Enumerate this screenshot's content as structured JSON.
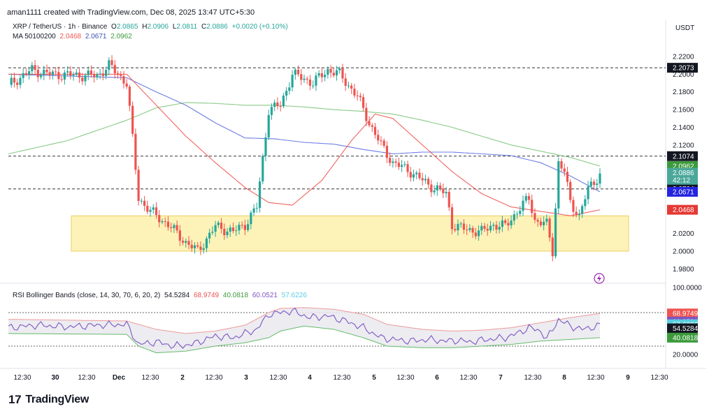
{
  "header": {
    "text": "aman1111 created with TradingView.com, Dec 08, 2025 13:47 UTC+5:30"
  },
  "legend": {
    "symbol": "XRP / TetherUS · 1h · Binance",
    "o_label": "O",
    "o": "2.0865",
    "h_label": "H",
    "h": "2.0906",
    "l_label": "L",
    "l": "2.0811",
    "c_label": "C",
    "c": "2.0886",
    "chg": "+0.0020 (+0.10%)",
    "ma_label": "MA 50100200",
    "ma50": "2.0468",
    "ma100": "2.0671",
    "ma200": "2.0962"
  },
  "rsi_legend": {
    "label": "RSI Bollinger Bands (close, 14, 30, 70, 6, 20, 2)",
    "v1": "54.5284",
    "v2": "68.9749",
    "v3": "40.0818",
    "v4": "60.0521",
    "v5": "57.6226"
  },
  "footer": {
    "brand": "TradingView",
    "logo": "17"
  },
  "colors": {
    "up": "#26a69a",
    "down": "#ef5350",
    "ma50": "#ef5350",
    "ma100": "#5b6ee1",
    "ma200": "#7cc47a",
    "rsi": "#7e57c2",
    "zone": "#fdf3b8",
    "zone_border": "#e6c34a"
  },
  "chart_data": [
    {
      "type": "candlestick",
      "title": "XRP / TetherUS · 1h · Binance",
      "currency": "USDT",
      "ylim": [
        1.97,
        2.235
      ],
      "y_ticks": [
        "2.2200",
        "2.2000",
        "2.1800",
        "2.1600",
        "2.1400",
        "2.1200",
        "2.0200",
        "2.0000",
        "1.9800"
      ],
      "x_ticks": [
        "12:30",
        "30",
        "12:30",
        "Dec",
        "12:30",
        "2",
        "12:30",
        "3",
        "12:30",
        "4",
        "12:30",
        "5",
        "12:30",
        "6",
        "12:30",
        "7",
        "12:30",
        "8",
        "12:30",
        "9",
        "12:30"
      ],
      "n_candles": 168,
      "closes_anchor": [
        [
          0,
          2.188
        ],
        [
          8,
          2.205
        ],
        [
          14,
          2.2
        ],
        [
          30,
          2.198
        ],
        [
          34,
          2.21
        ],
        [
          40,
          2.19
        ],
        [
          41,
          2.16
        ],
        [
          44,
          2.06
        ],
        [
          48,
          2.045
        ],
        [
          54,
          2.03
        ],
        [
          60,
          2.01
        ],
        [
          64,
          2.0
        ],
        [
          70,
          2.028
        ],
        [
          76,
          2.022
        ],
        [
          80,
          2.03
        ],
        [
          84,
          2.05
        ],
        [
          88,
          2.16
        ],
        [
          92,
          2.165
        ],
        [
          96,
          2.2
        ],
        [
          100,
          2.195
        ],
        [
          103,
          2.19
        ],
        [
          108,
          2.205
        ],
        [
          112,
          2.2
        ],
        [
          118,
          2.175
        ],
        [
          122,
          2.145
        ],
        [
          126,
          2.12
        ],
        [
          130,
          2.1
        ],
        [
          136,
          2.09
        ],
        [
          142,
          2.075
        ],
        [
          148,
          2.065
        ],
        [
          150,
          2.03
        ],
        [
          154,
          2.025
        ],
        [
          160,
          2.022
        ],
        [
          164,
          2.03
        ],
        [
          168,
          2.028
        ],
        [
          172,
          2.045
        ],
        [
          176,
          2.06
        ],
        [
          178,
          2.035
        ],
        [
          182,
          2.03
        ],
        [
          184,
          2.0
        ],
        [
          186,
          2.1
        ],
        [
          188,
          2.09
        ],
        [
          190,
          2.055
        ],
        [
          193,
          2.04
        ],
        [
          196,
          2.07
        ],
        [
          200,
          2.087
        ]
      ],
      "ma50_anchor": [
        [
          0,
          2.2
        ],
        [
          40,
          2.2
        ],
        [
          50,
          2.165
        ],
        [
          60,
          2.13
        ],
        [
          70,
          2.1
        ],
        [
          80,
          2.072
        ],
        [
          88,
          2.055
        ],
        [
          96,
          2.052
        ],
        [
          106,
          2.08
        ],
        [
          116,
          2.125
        ],
        [
          124,
          2.155
        ],
        [
          130,
          2.15
        ],
        [
          140,
          2.12
        ],
        [
          150,
          2.09
        ],
        [
          160,
          2.065
        ],
        [
          170,
          2.05
        ],
        [
          180,
          2.045
        ],
        [
          190,
          2.04
        ],
        [
          200,
          2.0468
        ]
      ],
      "ma100_anchor": [
        [
          0,
          2.2
        ],
        [
          40,
          2.196
        ],
        [
          50,
          2.18
        ],
        [
          60,
          2.165
        ],
        [
          70,
          2.145
        ],
        [
          80,
          2.128
        ],
        [
          90,
          2.127
        ],
        [
          100,
          2.123
        ],
        [
          110,
          2.121
        ],
        [
          120,
          2.115
        ],
        [
          130,
          2.11
        ],
        [
          140,
          2.112
        ],
        [
          150,
          2.112
        ],
        [
          160,
          2.11
        ],
        [
          170,
          2.108
        ],
        [
          180,
          2.1
        ],
        [
          190,
          2.085
        ],
        [
          200,
          2.0671
        ]
      ],
      "ma200_anchor": [
        [
          0,
          2.11
        ],
        [
          20,
          2.125
        ],
        [
          40,
          2.148
        ],
        [
          50,
          2.162
        ],
        [
          60,
          2.168
        ],
        [
          70,
          2.167
        ],
        [
          80,
          2.165
        ],
        [
          90,
          2.165
        ],
        [
          100,
          2.163
        ],
        [
          110,
          2.16
        ],
        [
          120,
          2.158
        ],
        [
          130,
          2.155
        ],
        [
          140,
          2.148
        ],
        [
          150,
          2.14
        ],
        [
          160,
          2.13
        ],
        [
          170,
          2.12
        ],
        [
          180,
          2.113
        ],
        [
          190,
          2.106
        ],
        [
          200,
          2.0962
        ]
      ],
      "horizontal_lines": [
        {
          "value": 2.2073,
          "label": "2.2073",
          "style": "dashed"
        },
        {
          "value": 2.1074,
          "label": "2.1074",
          "style": "dashed"
        },
        {
          "value": 2.0704,
          "label": "2.0704",
          "style": "dashed"
        }
      ],
      "price_labels": [
        {
          "value": 2.0962,
          "label": "2.0962",
          "color": "#3c9a3c"
        },
        {
          "value": 2.0886,
          "label": "2.0886",
          "sub": "42:12",
          "color": "#4aa89a"
        },
        {
          "value": 2.0671,
          "label": "2.0671",
          "color": "#2424e0"
        },
        {
          "value": 2.0468,
          "label": "2.0468",
          "color": "#e53935"
        }
      ],
      "zone": {
        "from": 2.0,
        "to": 2.04
      }
    },
    {
      "type": "line",
      "title": "RSI Bollinger Bands (close, 14, 30, 70, 6, 20, 2)",
      "ylim": [
        10,
        100
      ],
      "y_ticks": [
        "100.0000",
        "20.0000"
      ],
      "levels": [
        70,
        30
      ],
      "rsi_anchor": [
        [
          0,
          52
        ],
        [
          10,
          55
        ],
        [
          20,
          53
        ],
        [
          30,
          55
        ],
        [
          40,
          56
        ],
        [
          44,
          32
        ],
        [
          50,
          35
        ],
        [
          56,
          30
        ],
        [
          62,
          32
        ],
        [
          70,
          42
        ],
        [
          76,
          40
        ],
        [
          84,
          50
        ],
        [
          88,
          68
        ],
        [
          92,
          70
        ],
        [
          96,
          72
        ],
        [
          102,
          64
        ],
        [
          108,
          66
        ],
        [
          114,
          60
        ],
        [
          120,
          52
        ],
        [
          126,
          40
        ],
        [
          130,
          38
        ],
        [
          136,
          36
        ],
        [
          142,
          38
        ],
        [
          148,
          36
        ],
        [
          152,
          37
        ],
        [
          156,
          35
        ],
        [
          162,
          38
        ],
        [
          168,
          40
        ],
        [
          172,
          45
        ],
        [
          176,
          52
        ],
        [
          180,
          48
        ],
        [
          182,
          38
        ],
        [
          186,
          62
        ],
        [
          190,
          54
        ],
        [
          194,
          50
        ],
        [
          200,
          54.5284
        ]
      ],
      "upper_anchor": [
        [
          0,
          62
        ],
        [
          40,
          60
        ],
        [
          44,
          56
        ],
        [
          50,
          50
        ],
        [
          60,
          45
        ],
        [
          70,
          48
        ],
        [
          80,
          55
        ],
        [
          88,
          70
        ],
        [
          92,
          75
        ],
        [
          100,
          76
        ],
        [
          110,
          74
        ],
        [
          120,
          68
        ],
        [
          128,
          56
        ],
        [
          140,
          50
        ],
        [
          150,
          48
        ],
        [
          160,
          49
        ],
        [
          170,
          52
        ],
        [
          180,
          58
        ],
        [
          190,
          64
        ],
        [
          200,
          68.9749
        ]
      ],
      "lower_anchor": [
        [
          0,
          45
        ],
        [
          40,
          44
        ],
        [
          44,
          30
        ],
        [
          50,
          22
        ],
        [
          60,
          24
        ],
        [
          70,
          30
        ],
        [
          80,
          34
        ],
        [
          88,
          40
        ],
        [
          92,
          48
        ],
        [
          100,
          54
        ],
        [
          110,
          50
        ],
        [
          120,
          40
        ],
        [
          128,
          30
        ],
        [
          140,
          28
        ],
        [
          150,
          28
        ],
        [
          160,
          30
        ],
        [
          170,
          32
        ],
        [
          180,
          36
        ],
        [
          190,
          38
        ],
        [
          200,
          40.0818
        ]
      ],
      "value_labels": [
        {
          "value": 68.9749,
          "label": "68.9749",
          "color": "#ef5350"
        },
        {
          "value": 60.0521,
          "label": "60.0521",
          "color": "#7e57c2"
        },
        {
          "value": 57.6226,
          "label": "57.6226",
          "color": "#59cfe0"
        },
        {
          "value": 54.5284,
          "label": "54.5284",
          "color": "#131722"
        },
        {
          "value": 40.0818,
          "label": "40.0818",
          "color": "#3c9a3c"
        }
      ]
    }
  ]
}
